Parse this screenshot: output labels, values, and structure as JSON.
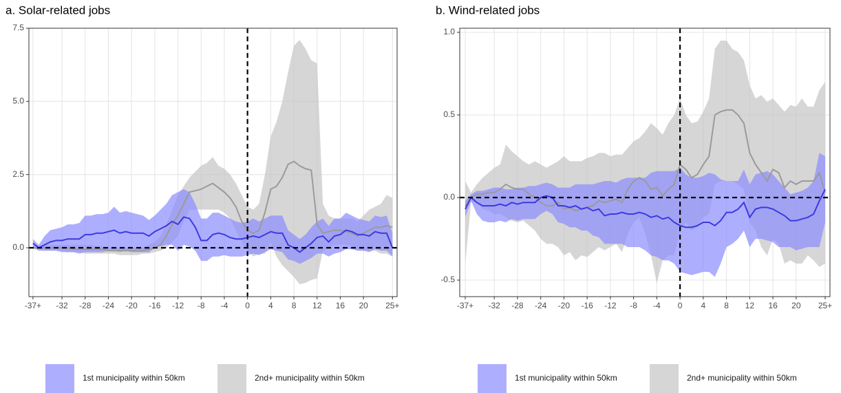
{
  "chart_data": [
    {
      "type": "band-line",
      "title": "a. Solar-related jobs",
      "x": [
        -37,
        -36,
        -35,
        -34,
        -33,
        -32,
        -31,
        -30,
        -29,
        -28,
        -27,
        -26,
        -25,
        -24,
        -23,
        -22,
        -21,
        -20,
        -19,
        -18,
        -17,
        -16,
        -15,
        -14,
        -13,
        -12,
        -11,
        -10,
        -9,
        -8,
        -7,
        -6,
        -5,
        -4,
        -3,
        -2,
        -1,
        0,
        1,
        2,
        3,
        4,
        5,
        6,
        7,
        8,
        9,
        10,
        11,
        12,
        13,
        14,
        15,
        16,
        17,
        18,
        19,
        20,
        21,
        22,
        23,
        24,
        25
      ],
      "xlim": [
        -37.7,
        25.8
      ],
      "xticks": [
        {
          "value": -37,
          "label": "-37+"
        },
        -32,
        -28,
        -24,
        -20,
        -16,
        -12,
        -8,
        -4,
        0,
        4,
        8,
        12,
        16,
        20,
        {
          "value": 25,
          "label": "25+"
        }
      ],
      "ylim": [
        -1.67,
        7.5
      ],
      "yticks": [
        {
          "value": 0,
          "label": "0.0"
        },
        2.5,
        {
          "value": 5,
          "label": "5.0"
        },
        7.5
      ],
      "hline": 0,
      "vline": 0,
      "grid": true,
      "series": [
        {
          "name": "1st municipality within 50km",
          "color": "#8c8cff",
          "line_color": "#3a3ae0",
          "values": [
            0.15,
            0,
            0.1,
            0.2,
            0.25,
            0.25,
            0.3,
            0.3,
            0.3,
            0.45,
            0.45,
            0.5,
            0.5,
            0.55,
            0.6,
            0.5,
            0.55,
            0.5,
            0.5,
            0.5,
            0.4,
            0.55,
            0.65,
            0.75,
            0.9,
            0.8,
            1.05,
            1.0,
            0.7,
            0.25,
            0.25,
            0.45,
            0.5,
            0.45,
            0.35,
            0.3,
            0.3,
            0.35,
            0.4,
            0.35,
            0.45,
            0.55,
            0.5,
            0.5,
            0.1,
            0,
            -0.15,
            0,
            0.15,
            0.35,
            0.4,
            0.2,
            0.4,
            0.45,
            0.6,
            0.55,
            0.45,
            0.45,
            0.4,
            0.55,
            0.5,
            0.5,
            0
          ],
          "upper": [
            0.3,
            0.1,
            0.4,
            0.6,
            0.65,
            0.7,
            0.8,
            0.8,
            0.85,
            1.1,
            1.1,
            1.15,
            1.15,
            1.2,
            1.4,
            1.2,
            1.25,
            1.2,
            1.15,
            1.1,
            0.95,
            1.1,
            1.3,
            1.5,
            1.8,
            1.9,
            2.0,
            1.9,
            1.5,
            1.0,
            1.0,
            1.2,
            1.2,
            1.1,
            1.0,
            0.9,
            0.85,
            0.9,
            1.0,
            0.9,
            1.0,
            1.1,
            1.1,
            1.1,
            0.6,
            0.45,
            0.3,
            0.45,
            0.7,
            0.9,
            1.0,
            0.75,
            1.0,
            1.0,
            1.2,
            1.1,
            1.0,
            0.95,
            0.9,
            1.1,
            1.05,
            1.1,
            0.5
          ],
          "lower": [
            0,
            -0.1,
            -0.1,
            -0.1,
            -0.1,
            -0.15,
            -0.15,
            -0.15,
            -0.2,
            -0.15,
            -0.15,
            -0.15,
            -0.15,
            -0.1,
            -0.1,
            -0.15,
            -0.1,
            -0.15,
            -0.15,
            -0.15,
            -0.15,
            0,
            0.05,
            0.1,
            0.1,
            -0.1,
            0.1,
            0.05,
            -0.1,
            -0.45,
            -0.45,
            -0.3,
            -0.3,
            -0.25,
            -0.3,
            -0.3,
            -0.3,
            -0.25,
            -0.2,
            -0.25,
            -0.15,
            -0.05,
            -0.1,
            -0.15,
            -0.4,
            -0.45,
            -0.55,
            -0.45,
            -0.35,
            -0.2,
            -0.2,
            -0.3,
            -0.2,
            -0.15,
            -0.05,
            -0.05,
            -0.1,
            -0.1,
            -0.15,
            -0.05,
            -0.1,
            -0.1,
            -0.3
          ]
        },
        {
          "name": "2nd+ municipality within 50km",
          "color": "#c4c4c4",
          "line_color": "#9a9a9a",
          "values": [
            0,
            0,
            0,
            0,
            0,
            0,
            0,
            -0.05,
            -0.05,
            -0.05,
            -0.05,
            -0.05,
            -0.05,
            -0.1,
            -0.1,
            -0.1,
            -0.1,
            -0.1,
            -0.1,
            -0.1,
            -0.05,
            0,
            0.1,
            0.4,
            0.8,
            1.1,
            1.5,
            1.9,
            1.95,
            2.0,
            2.1,
            2.2,
            2.05,
            1.9,
            1.7,
            1.4,
            0.9,
            0.6,
            0.5,
            0.6,
            1.2,
            2.0,
            2.1,
            2.4,
            2.85,
            2.95,
            2.8,
            2.7,
            2.65,
            0.8,
            0.5,
            0.55,
            0.6,
            0.6,
            0.55,
            0.5,
            0.4,
            0.5,
            0.6,
            0.7,
            0.7,
            0.75,
            0.7
          ],
          "upper": [
            0.05,
            0.05,
            0.1,
            0.1,
            0.1,
            0.1,
            0.1,
            0.1,
            0.1,
            0.1,
            0.1,
            0.05,
            0.05,
            0,
            0,
            0,
            0,
            0,
            0,
            0,
            0.1,
            0.2,
            0.4,
            0.8,
            1.3,
            1.8,
            2.1,
            2.4,
            2.6,
            2.8,
            2.9,
            3.1,
            2.8,
            2.7,
            2.5,
            2.2,
            1.8,
            1.4,
            1.3,
            1.5,
            2.5,
            3.8,
            4.3,
            5.0,
            6.0,
            6.9,
            7.1,
            6.8,
            6.4,
            6.3,
            1.5,
            1.1,
            1.0,
            1.0,
            1.0,
            1.0,
            0.9,
            1.1,
            1.3,
            1.4,
            1.5,
            1.8,
            1.7
          ],
          "lower": [
            -0.05,
            -0.05,
            -0.1,
            -0.1,
            -0.1,
            -0.1,
            -0.15,
            -0.15,
            -0.15,
            -0.2,
            -0.2,
            -0.2,
            -0.2,
            -0.2,
            -0.2,
            -0.25,
            -0.25,
            -0.25,
            -0.25,
            -0.2,
            -0.2,
            -0.15,
            -0.1,
            0,
            0.2,
            0.4,
            0.9,
            1.3,
            1.3,
            1.3,
            1.3,
            1.3,
            1.3,
            1.2,
            1.0,
            0.6,
            0.2,
            -0.1,
            -0.3,
            -0.2,
            -0.2,
            0.2,
            -0.3,
            -0.6,
            -0.8,
            -1.0,
            -1.25,
            -1.2,
            -1.1,
            -1.05,
            -0.1,
            0,
            0.1,
            0.1,
            0.1,
            0.05,
            -0.1,
            -0.1,
            -0.1,
            -0.1,
            -0.2,
            -0.2,
            -0.3
          ]
        }
      ]
    },
    {
      "type": "band-line",
      "title": "b. Wind-related jobs",
      "x": [
        -37,
        -36,
        -35,
        -34,
        -33,
        -32,
        -31,
        -30,
        -29,
        -28,
        -27,
        -26,
        -25,
        -24,
        -23,
        -22,
        -21,
        -20,
        -19,
        -18,
        -17,
        -16,
        -15,
        -14,
        -13,
        -12,
        -11,
        -10,
        -9,
        -8,
        -7,
        -6,
        -5,
        -4,
        -3,
        -2,
        -1,
        0,
        1,
        2,
        3,
        4,
        5,
        6,
        7,
        8,
        9,
        10,
        11,
        12,
        13,
        14,
        15,
        16,
        17,
        18,
        19,
        20,
        21,
        22,
        23,
        24,
        25
      ],
      "xlim": [
        -37.95,
        25.83
      ],
      "xticks": [
        {
          "value": -37,
          "label": "-37+"
        },
        -32,
        -28,
        -24,
        -20,
        -16,
        -12,
        -8,
        -4,
        0,
        4,
        8,
        12,
        16,
        20,
        {
          "value": 25,
          "label": "25+"
        }
      ],
      "ylim": [
        -0.6,
        1.025
      ],
      "yticks": [
        -0.5,
        {
          "value": 0,
          "label": "0.0"
        },
        0.5,
        {
          "value": 1,
          "label": "1.0"
        }
      ],
      "hline": 0,
      "vline": 0,
      "grid": true,
      "series": [
        {
          "name": "1st municipality within 50km",
          "color": "#8c8cff",
          "line_color": "#3a3ae0",
          "values": [
            -0.07,
            0,
            -0.03,
            -0.05,
            -0.05,
            -0.05,
            -0.04,
            -0.05,
            -0.03,
            -0.04,
            -0.03,
            -0.03,
            -0.03,
            0,
            0.01,
            0,
            -0.05,
            -0.05,
            -0.06,
            -0.05,
            -0.07,
            -0.06,
            -0.08,
            -0.07,
            -0.11,
            -0.1,
            -0.1,
            -0.09,
            -0.1,
            -0.1,
            -0.09,
            -0.1,
            -0.12,
            -0.11,
            -0.13,
            -0.12,
            -0.15,
            -0.17,
            -0.18,
            -0.18,
            -0.17,
            -0.15,
            -0.15,
            -0.17,
            -0.14,
            -0.09,
            -0.09,
            -0.07,
            -0.03,
            -0.12,
            -0.07,
            -0.06,
            -0.06,
            -0.07,
            -0.09,
            -0.11,
            -0.14,
            -0.14,
            -0.13,
            -0.12,
            -0.1,
            -0.02,
            0.05
          ],
          "upper": [
            -0.02,
            0.02,
            0.04,
            0.04,
            0.05,
            0.06,
            0.06,
            0.05,
            0.05,
            0.06,
            0.06,
            0.07,
            0.07,
            0.08,
            0.09,
            0.08,
            0.06,
            0.06,
            0.06,
            0.08,
            0.08,
            0.08,
            0.08,
            0.09,
            0.1,
            0.1,
            0.09,
            0.11,
            0.12,
            0.12,
            0.12,
            0.12,
            0.15,
            0.16,
            0.16,
            0.16,
            0.16,
            0.18,
            0.14,
            0.12,
            0.12,
            0.13,
            0.15,
            0.14,
            0.11,
            0.1,
            0.1,
            0.1,
            0.17,
            0.08,
            0.14,
            0.15,
            0.16,
            0.14,
            0.1,
            0.06,
            0.02,
            0.03,
            0.04,
            0.06,
            0.1,
            0.27,
            0.25
          ],
          "lower": [
            -0.12,
            -0.02,
            -0.1,
            -0.14,
            -0.15,
            -0.15,
            -0.14,
            -0.15,
            -0.13,
            -0.14,
            -0.13,
            -0.13,
            -0.13,
            -0.1,
            -0.08,
            -0.1,
            -0.15,
            -0.16,
            -0.18,
            -0.18,
            -0.2,
            -0.2,
            -0.23,
            -0.24,
            -0.28,
            -0.28,
            -0.28,
            -0.28,
            -0.3,
            -0.3,
            -0.3,
            -0.32,
            -0.35,
            -0.36,
            -0.38,
            -0.38,
            -0.4,
            -0.45,
            -0.46,
            -0.47,
            -0.46,
            -0.45,
            -0.45,
            -0.48,
            -0.4,
            -0.3,
            -0.28,
            -0.25,
            -0.2,
            -0.3,
            -0.25,
            -0.25,
            -0.26,
            -0.27,
            -0.3,
            -0.3,
            -0.3,
            -0.32,
            -0.31,
            -0.3,
            -0.3,
            -0.3,
            -0.15
          ]
        },
        {
          "name": "2nd+ municipality within 50km",
          "color": "#c4c4c4",
          "line_color": "#9a9a9a",
          "values": [
            -0.05,
            0,
            0.02,
            0.02,
            0.03,
            0.03,
            0.05,
            0.08,
            0.06,
            0.05,
            0.05,
            0.02,
            0,
            -0.03,
            -0.05,
            -0.05,
            -0.03,
            -0.07,
            -0.06,
            -0.08,
            -0.07,
            -0.06,
            -0.05,
            -0.02,
            -0.03,
            -0.02,
            -0.01,
            -0.03,
            0.05,
            0.1,
            0.12,
            0.1,
            0.05,
            0.06,
            0.01,
            0.05,
            0.08,
            0.2,
            0.17,
            0.12,
            0.14,
            0.2,
            0.25,
            0.5,
            0.52,
            0.53,
            0.53,
            0.5,
            0.45,
            0.27,
            0.2,
            0.15,
            0.1,
            0.17,
            0.15,
            0.06,
            0.1,
            0.08,
            0.1,
            0.1,
            0.1,
            0.15,
            0.03
          ],
          "upper": [
            0.1,
            0.03,
            0.08,
            0.12,
            0.15,
            0.18,
            0.2,
            0.32,
            0.28,
            0.25,
            0.22,
            0.2,
            0.22,
            0.2,
            0.18,
            0.2,
            0.22,
            0.25,
            0.22,
            0.22,
            0.22,
            0.24,
            0.25,
            0.27,
            0.27,
            0.25,
            0.26,
            0.26,
            0.3,
            0.34,
            0.36,
            0.4,
            0.45,
            0.42,
            0.38,
            0.45,
            0.5,
            0.6,
            0.5,
            0.45,
            0.46,
            0.52,
            0.6,
            0.9,
            0.95,
            0.95,
            0.9,
            0.88,
            0.83,
            0.68,
            0.6,
            0.62,
            0.58,
            0.6,
            0.56,
            0.52,
            0.56,
            0.55,
            0.6,
            0.55,
            0.55,
            0.65,
            0.7
          ],
          "lower": [
            -0.4,
            -0.03,
            -0.03,
            -0.07,
            -0.08,
            -0.1,
            -0.1,
            -0.12,
            -0.14,
            -0.15,
            -0.14,
            -0.17,
            -0.2,
            -0.25,
            -0.28,
            -0.28,
            -0.3,
            -0.35,
            -0.33,
            -0.38,
            -0.35,
            -0.36,
            -0.33,
            -0.3,
            -0.32,
            -0.3,
            -0.28,
            -0.33,
            -0.22,
            -0.15,
            -0.12,
            -0.22,
            -0.35,
            -0.52,
            -0.38,
            -0.35,
            -0.35,
            -0.2,
            -0.15,
            -0.2,
            -0.18,
            -0.12,
            -0.1,
            0.08,
            0.1,
            0.1,
            0.1,
            0.08,
            0.05,
            -0.15,
            -0.2,
            -0.3,
            -0.35,
            -0.25,
            -0.28,
            -0.4,
            -0.38,
            -0.4,
            -0.4,
            -0.35,
            -0.38,
            -0.42,
            -0.4
          ]
        }
      ]
    }
  ]
}
